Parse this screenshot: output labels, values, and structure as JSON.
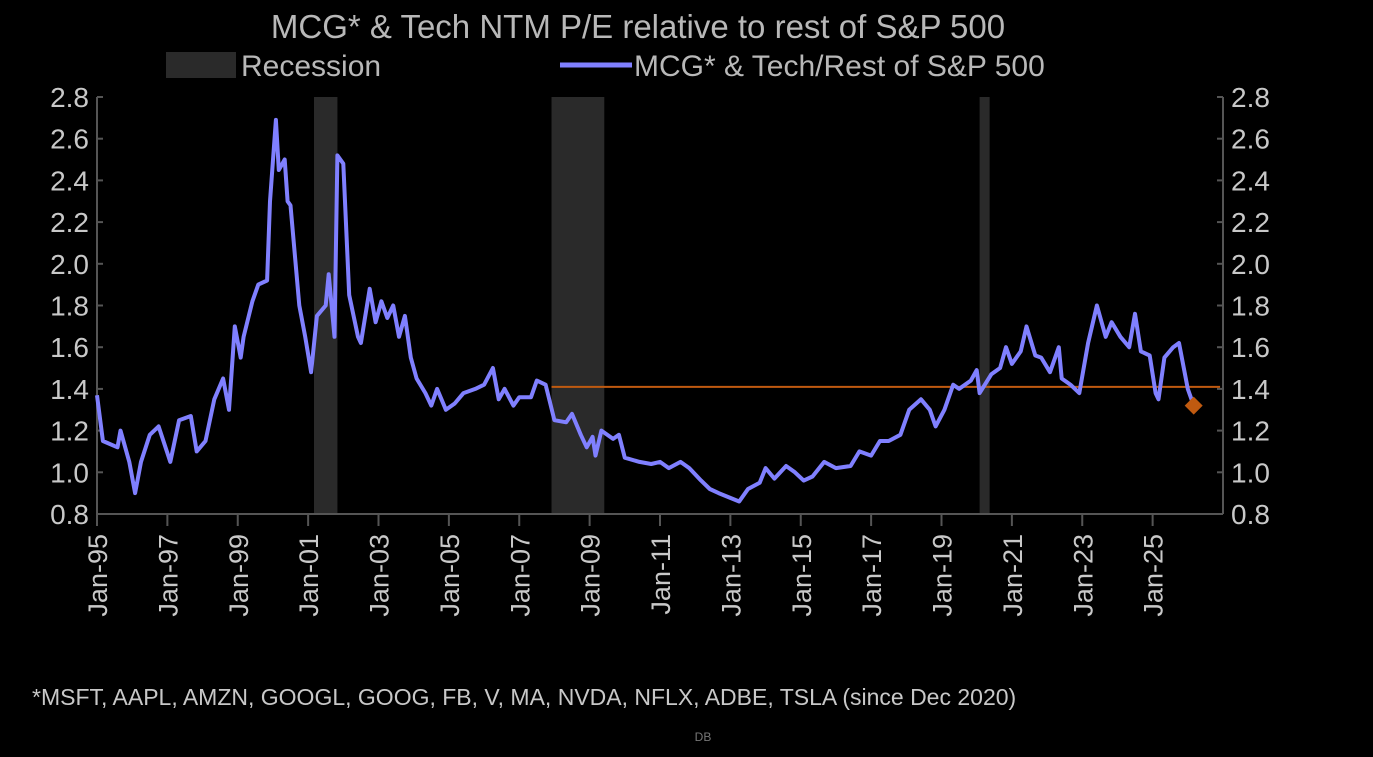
{
  "chart_data": {
    "type": "line",
    "title": "MCG* & Tech NTM P/E relative to rest of S&P 500",
    "legend": [
      {
        "name": "Recession",
        "kind": "area",
        "color": "#2a2a2a"
      },
      {
        "name": "MCG* & Tech/Rest of S&P 500",
        "kind": "line",
        "color": "#8080ff"
      }
    ],
    "legend_placement": "top",
    "y_ticks": [
      "0.8",
      "1.0",
      "1.2",
      "1.4",
      "1.6",
      "1.8",
      "2.0",
      "2.2",
      "2.4",
      "2.6",
      "2.8"
    ],
    "ylim": [
      0.8,
      2.8
    ],
    "y_axes": [
      "left",
      "right"
    ],
    "x_ticks": [
      "Jan-95",
      "Jan-97",
      "Jan-99",
      "Jan-01",
      "Jan-03",
      "Jan-05",
      "Jan-07",
      "Jan-09",
      "Jan-11",
      "Jan-13",
      "Jan-15",
      "Jan-17",
      "Jan-19",
      "Jan-21",
      "Jan-23",
      "Jan-25"
    ],
    "xlim": [
      "1995-01",
      "2027-01"
    ],
    "grid": false,
    "recessions": [
      [
        "2001-03",
        "2001-11"
      ],
      [
        "2007-12",
        "2009-06"
      ],
      [
        "2020-02",
        "2020-04"
      ]
    ],
    "reference_line": {
      "value": 1.41,
      "from": "2007-12",
      "to": "2026-12",
      "color": "#c05a10"
    },
    "latest_marker": {
      "date": "2026-03",
      "value": 1.32,
      "color": "#c05a10"
    },
    "series": [
      {
        "name": "MCG* & Tech/Rest of S&P 500",
        "color": "#8080ff",
        "points": [
          [
            "1995-01",
            1.37
          ],
          [
            "1995-03",
            1.15
          ],
          [
            "1995-08",
            1.12
          ],
          [
            "1995-09",
            1.2
          ],
          [
            "1995-12",
            1.05
          ],
          [
            "1996-02",
            0.9
          ],
          [
            "1996-04",
            1.05
          ],
          [
            "1996-07",
            1.18
          ],
          [
            "1996-10",
            1.22
          ],
          [
            "1997-02",
            1.05
          ],
          [
            "1997-05",
            1.25
          ],
          [
            "1997-09",
            1.27
          ],
          [
            "1997-11",
            1.1
          ],
          [
            "1998-02",
            1.15
          ],
          [
            "1998-05",
            1.35
          ],
          [
            "1998-08",
            1.45
          ],
          [
            "1998-10",
            1.3
          ],
          [
            "1998-12",
            1.7
          ],
          [
            "1999-02",
            1.55
          ],
          [
            "1999-03",
            1.65
          ],
          [
            "1999-06",
            1.82
          ],
          [
            "1999-08",
            1.9
          ],
          [
            "1999-11",
            1.92
          ],
          [
            "1999-12",
            2.3
          ],
          [
            "2000-02",
            2.69
          ],
          [
            "2000-03",
            2.45
          ],
          [
            "2000-05",
            2.5
          ],
          [
            "2000-06",
            2.3
          ],
          [
            "2000-07",
            2.28
          ],
          [
            "2000-10",
            1.8
          ],
          [
            "2000-12",
            1.65
          ],
          [
            "2001-02",
            1.48
          ],
          [
            "2001-04",
            1.75
          ],
          [
            "2001-07",
            1.8
          ],
          [
            "2001-08",
            1.95
          ],
          [
            "2001-10",
            1.65
          ],
          [
            "2001-11",
            2.52
          ],
          [
            "2002-01",
            2.48
          ],
          [
            "2002-03",
            1.85
          ],
          [
            "2002-06",
            1.65
          ],
          [
            "2002-07",
            1.62
          ],
          [
            "2002-10",
            1.88
          ],
          [
            "2002-12",
            1.72
          ],
          [
            "2003-02",
            1.82
          ],
          [
            "2003-04",
            1.74
          ],
          [
            "2003-06",
            1.8
          ],
          [
            "2003-08",
            1.65
          ],
          [
            "2003-10",
            1.75
          ],
          [
            "2003-12",
            1.55
          ],
          [
            "2004-02",
            1.45
          ],
          [
            "2004-05",
            1.38
          ],
          [
            "2004-07",
            1.32
          ],
          [
            "2004-09",
            1.4
          ],
          [
            "2004-12",
            1.3
          ],
          [
            "2005-03",
            1.33
          ],
          [
            "2005-06",
            1.38
          ],
          [
            "2005-10",
            1.4
          ],
          [
            "2006-01",
            1.42
          ],
          [
            "2006-04",
            1.5
          ],
          [
            "2006-06",
            1.35
          ],
          [
            "2006-08",
            1.4
          ],
          [
            "2006-11",
            1.32
          ],
          [
            "2007-01",
            1.36
          ],
          [
            "2007-05",
            1.36
          ],
          [
            "2007-07",
            1.44
          ],
          [
            "2007-10",
            1.42
          ],
          [
            "2008-01",
            1.25
          ],
          [
            "2008-05",
            1.24
          ],
          [
            "2008-07",
            1.28
          ],
          [
            "2008-10",
            1.18
          ],
          [
            "2008-12",
            1.12
          ],
          [
            "2009-02",
            1.17
          ],
          [
            "2009-03",
            1.08
          ],
          [
            "2009-05",
            1.2
          ],
          [
            "2009-09",
            1.16
          ],
          [
            "2009-11",
            1.18
          ],
          [
            "2010-01",
            1.07
          ],
          [
            "2010-06",
            1.05
          ],
          [
            "2010-10",
            1.04
          ],
          [
            "2011-01",
            1.05
          ],
          [
            "2011-04",
            1.02
          ],
          [
            "2011-08",
            1.05
          ],
          [
            "2011-11",
            1.02
          ],
          [
            "2012-03",
            0.96
          ],
          [
            "2012-06",
            0.92
          ],
          [
            "2012-09",
            0.9
          ],
          [
            "2013-04",
            0.86
          ],
          [
            "2013-07",
            0.92
          ],
          [
            "2013-11",
            0.95
          ],
          [
            "2014-01",
            1.02
          ],
          [
            "2014-04",
            0.97
          ],
          [
            "2014-08",
            1.03
          ],
          [
            "2014-11",
            1.0
          ],
          [
            "2015-02",
            0.96
          ],
          [
            "2015-05",
            0.98
          ],
          [
            "2015-09",
            1.05
          ],
          [
            "2016-01",
            1.02
          ],
          [
            "2016-06",
            1.03
          ],
          [
            "2016-09",
            1.1
          ],
          [
            "2017-01",
            1.08
          ],
          [
            "2017-04",
            1.15
          ],
          [
            "2017-07",
            1.15
          ],
          [
            "2017-11",
            1.18
          ],
          [
            "2018-02",
            1.3
          ],
          [
            "2018-06",
            1.35
          ],
          [
            "2018-09",
            1.3
          ],
          [
            "2018-11",
            1.22
          ],
          [
            "2019-02",
            1.3
          ],
          [
            "2019-05",
            1.42
          ],
          [
            "2019-07",
            1.4
          ],
          [
            "2019-11",
            1.44
          ],
          [
            "2020-01",
            1.49
          ],
          [
            "2020-02",
            1.38
          ],
          [
            "2020-06",
            1.47
          ],
          [
            "2020-09",
            1.5
          ],
          [
            "2020-11",
            1.6
          ],
          [
            "2021-01",
            1.52
          ],
          [
            "2021-04",
            1.58
          ],
          [
            "2021-06",
            1.7
          ],
          [
            "2021-09",
            1.56
          ],
          [
            "2021-11",
            1.55
          ],
          [
            "2022-02",
            1.48
          ],
          [
            "2022-05",
            1.6
          ],
          [
            "2022-06",
            1.45
          ],
          [
            "2022-09",
            1.42
          ],
          [
            "2022-12",
            1.38
          ],
          [
            "2023-03",
            1.62
          ],
          [
            "2023-06",
            1.8
          ],
          [
            "2023-09",
            1.65
          ],
          [
            "2023-11",
            1.72
          ],
          [
            "2024-02",
            1.65
          ],
          [
            "2024-05",
            1.6
          ],
          [
            "2024-07",
            1.76
          ],
          [
            "2024-09",
            1.58
          ],
          [
            "2024-12",
            1.56
          ],
          [
            "2025-02",
            1.38
          ],
          [
            "2025-03",
            1.35
          ],
          [
            "2025-05",
            1.55
          ],
          [
            "2025-08",
            1.6
          ],
          [
            "2025-10",
            1.62
          ],
          [
            "2026-01",
            1.4
          ],
          [
            "2026-03",
            1.32
          ]
        ]
      }
    ],
    "footnote": "*MSFT, AAPL, AMZN, GOOGL, GOOG, FB, V, MA, NVDA, NFLX, ADBE, TSLA (since Dec 2020)",
    "source": "DB"
  }
}
